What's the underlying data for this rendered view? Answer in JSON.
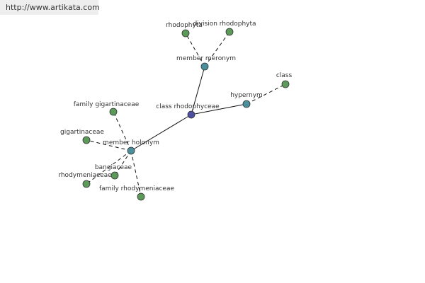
{
  "header": {
    "url": "http://www.artikata.com"
  },
  "nodes": [
    {
      "label": "class rhodophyceae"
    },
    {
      "label": "member meronym"
    },
    {
      "label": "rhodophyta"
    },
    {
      "label": "division rhodophyta"
    },
    {
      "label": "hypernym"
    },
    {
      "label": "class"
    },
    {
      "label": "member holonym"
    },
    {
      "label": "family gigartinaceae"
    },
    {
      "label": "gigartinaceae"
    },
    {
      "label": "bangiaceae"
    },
    {
      "label": "rhodymeniaceae"
    },
    {
      "label": "family rhodymeniaceae"
    }
  ]
}
